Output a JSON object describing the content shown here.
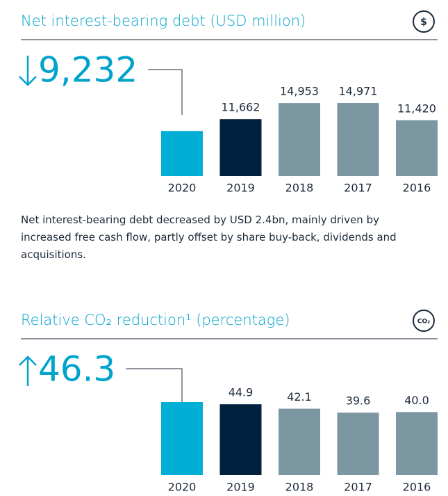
{
  "chart_data": [
    {
      "type": "bar",
      "title": "Net interest-bearing debt (USD million)",
      "icon": "$",
      "categories": [
        "2020",
        "2019",
        "2018",
        "2017",
        "2016"
      ],
      "values": [
        9232,
        11662,
        14953,
        14971,
        11420
      ],
      "value_labels": [
        "9,232",
        "11,662",
        "14,953",
        "14,971",
        "11,420"
      ],
      "colors": [
        "#00aed6",
        "#00203d",
        "#7b97a2",
        "#7b97a2",
        "#7b97a2"
      ],
      "description": "Net interest-bearing debt decreased by USD 2.4bn, mainly driven by increased free cash flow, partly offset by share buy-back, dividends and acquisitions."
    },
    {
      "type": "bar",
      "title": "Relative CO₂ reduction¹ (percentage)",
      "icon": "CO₂",
      "categories": [
        "2020",
        "2019",
        "2018",
        "2017",
        "2016"
      ],
      "values": [
        46.3,
        44.9,
        42.1,
        39.6,
        40.0
      ],
      "value_labels": [
        "46.3",
        "44.9",
        "42.1",
        "39.6",
        "40.0"
      ],
      "colors": [
        "#00aed6",
        "#00203d",
        "#7b97a2",
        "#7b97a2",
        "#7b97a2"
      ]
    }
  ]
}
